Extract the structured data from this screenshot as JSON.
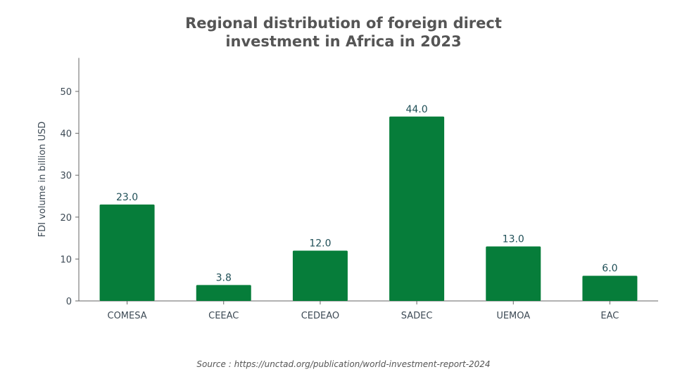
{
  "chart_data": {
    "type": "bar",
    "title_line1": "Regional distribution of foreign direct",
    "title_line2": "investment in Africa in 2023",
    "categories": [
      "COMESA",
      "CEEAC",
      "CEDEAO",
      "SADEC",
      "UEMOA",
      "EAC"
    ],
    "values": [
      23.0,
      3.8,
      12.0,
      44.0,
      13.0,
      6.0
    ],
    "data_labels": [
      "23.0",
      "3.8",
      "12.0",
      "44.0",
      "13.0",
      "6.0"
    ],
    "xlabel": "",
    "ylabel": "FDI volume in billion USD",
    "ylim": [
      0,
      58
    ],
    "yticks": [
      0,
      10,
      20,
      30,
      40,
      50
    ],
    "grid": false,
    "bar_color": "#067d3a"
  },
  "source": "Source : https://unctad.org/publication/world-investment-report-2024"
}
